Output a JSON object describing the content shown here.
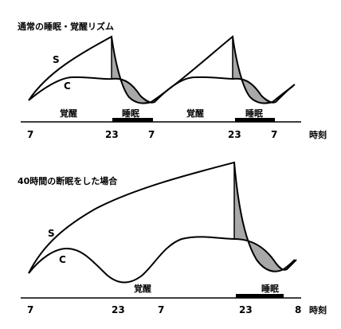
{
  "panel1": {
    "title": "通常の睡眠・覚醒リズム",
    "s_label": "S",
    "c_label": "C",
    "states": [
      "覚醒",
      "睡眠",
      "覚醒",
      "睡眠"
    ],
    "ticks": [
      "7",
      "23",
      "7",
      "23",
      "7"
    ],
    "unit": "時刻"
  },
  "panel2": {
    "title": "40時間の断眠をした場合",
    "s_label": "S",
    "c_label": "C",
    "states": [
      "覚醒",
      "睡眠"
    ],
    "ticks": [
      "7",
      "23",
      "7",
      "23",
      "8"
    ],
    "unit": "時刻"
  },
  "colors": {
    "line": "#000000",
    "shade": "#a8a8a8"
  }
}
